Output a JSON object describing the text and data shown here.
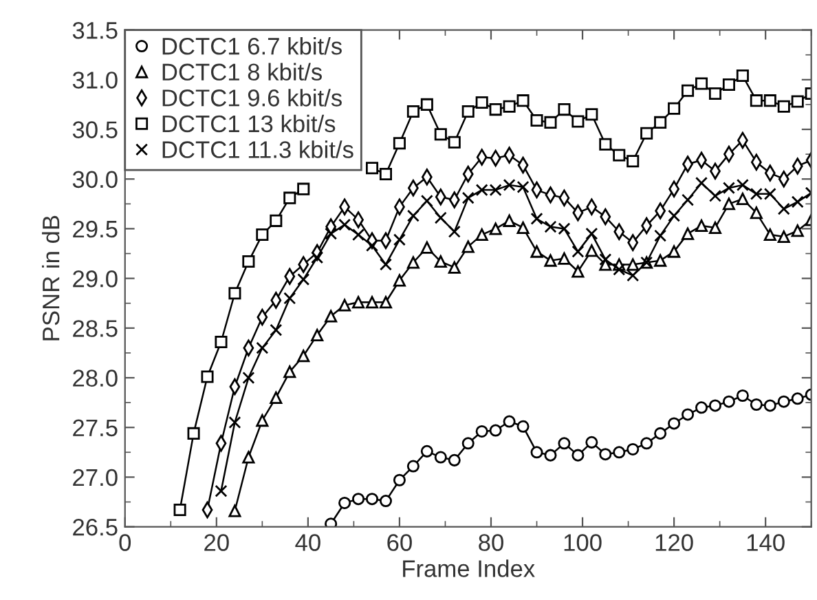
{
  "chart_data": {
    "type": "line",
    "xlabel": "Frame Index",
    "ylabel": "PSNR in dB",
    "xlim": [
      0,
      150
    ],
    "ylim": [
      26.5,
      31.5
    ],
    "xticks": [
      0,
      20,
      40,
      60,
      80,
      100,
      120,
      140
    ],
    "yticks": [
      {
        "value": 26.5,
        "label": "26.5"
      },
      {
        "value": 27,
        "label": "27.0"
      },
      {
        "value": 27.5,
        "label": "27.5"
      },
      {
        "value": 28,
        "label": "28.0"
      },
      {
        "value": 28.5,
        "label": "28.5"
      },
      {
        "value": 29,
        "label": "29.0"
      },
      {
        "value": 29.5,
        "label": "29.5"
      },
      {
        "value": 30,
        "label": "30.0"
      },
      {
        "value": 30.5,
        "label": "30.5"
      },
      {
        "value": 31,
        "label": "31.0"
      },
      {
        "value": 31.5,
        "label": "31.5"
      }
    ],
    "grid": false,
    "legend": "top left",
    "line_style": "solid",
    "series": [
      {
        "name": "DCTC1 6.7 kbit/s",
        "color": "#000000",
        "marker": "circle",
        "x": [
          45,
          48,
          51,
          54,
          57,
          60,
          63,
          66,
          69,
          72,
          75,
          78,
          81,
          84,
          87,
          90,
          93,
          96,
          99,
          102,
          105,
          108,
          111,
          114,
          117,
          120,
          123,
          126,
          129,
          132,
          135,
          138,
          141,
          144,
          147,
          150
        ],
        "values": [
          26.53,
          26.74,
          26.78,
          26.78,
          26.76,
          26.97,
          27.11,
          27.26,
          27.2,
          27.17,
          27.34,
          27.46,
          27.47,
          27.56,
          27.51,
          27.25,
          27.22,
          27.34,
          27.22,
          27.35,
          27.23,
          27.25,
          27.28,
          27.34,
          27.44,
          27.54,
          27.63,
          27.7,
          27.72,
          27.76,
          27.82,
          27.73,
          27.72,
          27.76,
          27.79,
          27.83
        ]
      },
      {
        "name": "DCTC1 8 kbit/s",
        "color": "#000000",
        "marker": "triangle",
        "x": [
          24,
          27,
          30,
          33,
          36,
          39,
          42,
          45,
          48,
          51,
          54,
          57,
          60,
          63,
          66,
          69,
          72,
          75,
          78,
          81,
          84,
          87,
          90,
          93,
          96,
          99,
          102,
          105,
          108,
          111,
          114,
          117,
          120,
          123,
          126,
          129,
          132,
          135,
          138,
          141,
          144,
          147,
          150
        ],
        "values": [
          26.66,
          27.2,
          27.57,
          27.8,
          28.06,
          28.22,
          28.43,
          28.62,
          28.73,
          28.76,
          28.76,
          28.76,
          28.98,
          29.16,
          29.31,
          29.17,
          29.11,
          29.32,
          29.44,
          29.5,
          29.58,
          29.51,
          29.27,
          29.18,
          29.2,
          29.07,
          29.28,
          29.14,
          29.14,
          29.14,
          29.16,
          29.18,
          29.27,
          29.45,
          29.53,
          29.51,
          29.75,
          29.8,
          29.66,
          29.44,
          29.42,
          29.48,
          29.59
        ]
      },
      {
        "name": "DCTC1 9.6 kbit/s",
        "color": "#000000",
        "marker": "diamond",
        "x": [
          18,
          21,
          24,
          27,
          30,
          33,
          36,
          39,
          42,
          45,
          48,
          51,
          54,
          57,
          60,
          63,
          66,
          69,
          72,
          75,
          78,
          81,
          84,
          87,
          90,
          93,
          96,
          99,
          102,
          105,
          108,
          111,
          114,
          117,
          120,
          123,
          126,
          129,
          132,
          135,
          138,
          141,
          144,
          147,
          150
        ],
        "values": [
          26.67,
          27.34,
          27.91,
          28.3,
          28.61,
          28.78,
          29.02,
          29.14,
          29.26,
          29.52,
          29.72,
          29.59,
          29.38,
          29.38,
          29.72,
          29.91,
          30.02,
          29.82,
          29.79,
          30.05,
          30.22,
          30.21,
          30.24,
          30.14,
          29.89,
          29.84,
          29.81,
          29.66,
          29.72,
          29.62,
          29.47,
          29.36,
          29.53,
          29.68,
          29.9,
          30.15,
          30.19,
          30.08,
          30.25,
          30.39,
          30.17,
          30.06,
          30.0,
          30.13,
          30.19
        ]
      },
      {
        "name": "DCTC1 13 kbit/s",
        "color": "#000000",
        "marker": "square",
        "x": [
          12,
          15,
          18,
          21,
          24,
          27,
          30,
          33,
          36,
          39,
          42,
          45,
          48,
          51,
          54,
          57,
          60,
          63,
          66,
          69,
          72,
          75,
          78,
          81,
          84,
          87,
          90,
          93,
          96,
          99,
          102,
          105,
          108,
          111,
          114,
          117,
          120,
          123,
          126,
          129,
          132,
          135,
          138,
          141,
          144,
          147,
          150
        ],
        "values": [
          26.67,
          27.44,
          28.01,
          28.36,
          28.85,
          29.17,
          29.44,
          29.58,
          29.81,
          29.9,
          null,
          null,
          null,
          null,
          30.11,
          30.05,
          30.36,
          30.68,
          30.75,
          30.45,
          30.37,
          30.68,
          30.77,
          30.7,
          30.73,
          30.79,
          30.59,
          30.57,
          30.7,
          30.58,
          30.65,
          30.35,
          30.24,
          30.18,
          30.46,
          30.57,
          30.71,
          30.89,
          30.96,
          30.86,
          30.95,
          31.04,
          30.79,
          30.79,
          30.73,
          30.78,
          30.86
        ]
      },
      {
        "name": "DCTC1 11.3 kbit/s",
        "color": "#000000",
        "marker": "cross",
        "x": [
          21,
          24,
          27,
          30,
          33,
          36,
          39,
          42,
          45,
          48,
          51,
          54,
          57,
          60,
          63,
          66,
          69,
          72,
          75,
          78,
          81,
          84,
          87,
          90,
          93,
          96,
          99,
          102,
          105,
          108,
          111,
          114,
          117,
          120,
          123,
          126,
          129,
          132,
          135,
          138,
          141,
          144,
          147,
          150
        ],
        "values": [
          26.86,
          27.55,
          28.0,
          28.3,
          28.48,
          28.8,
          28.99,
          29.21,
          29.45,
          29.54,
          29.44,
          29.33,
          29.14,
          29.39,
          29.63,
          29.78,
          29.61,
          29.47,
          29.81,
          29.89,
          29.89,
          29.94,
          29.92,
          29.6,
          29.52,
          29.5,
          29.27,
          29.45,
          29.19,
          29.09,
          29.03,
          29.16,
          29.43,
          29.63,
          29.79,
          29.96,
          29.83,
          29.91,
          29.94,
          29.85,
          29.85,
          29.7,
          29.77,
          29.86
        ]
      }
    ]
  }
}
